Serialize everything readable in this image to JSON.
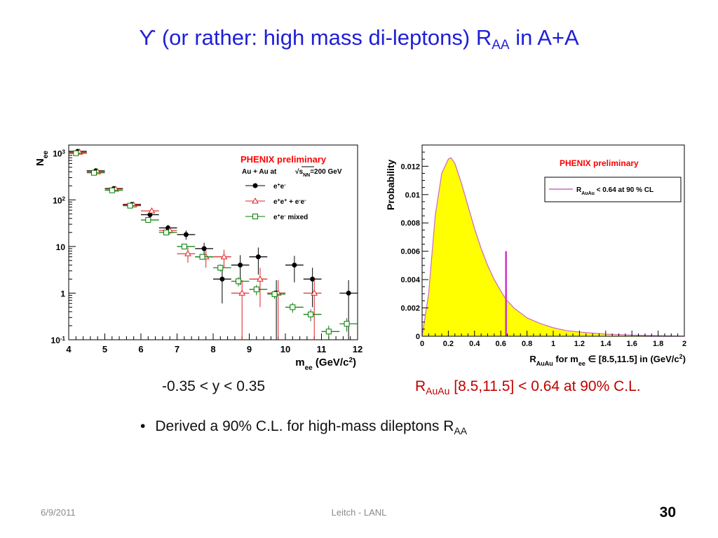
{
  "slide": {
    "title_prefix": "ϒ",
    "title_main": " (or rather: high mass di-leptons) R",
    "title_sub": "AA",
    "title_suffix": " in A+A",
    "rapidity_cut": "-0.35 < y < 0.35",
    "limit_prefix": "R",
    "limit_sub": "AuAu",
    "limit_suffix": " [8.5,11.5] < 0.64 at 90% C.L.",
    "bullet_prefix": "Derived a 90% C.L. for high-mass dileptons R",
    "bullet_sub": "AA",
    "footer_date": "6/9/2011",
    "footer_center": "Leitch - LANL",
    "page_number": "30"
  },
  "colors": {
    "title": "#1f1fd8",
    "limit_text": "#c00000",
    "phenix_label": "#ff0000",
    "series_black": "#000000",
    "series_red": "#e02020",
    "series_green": "#007a00",
    "histogram_fill": "#ffff00",
    "histogram_line": "#cc66cc",
    "limit_line": "#cc33cc"
  },
  "chart_data": [
    {
      "type": "scatter",
      "log_y": true,
      "xlim": [
        4,
        12
      ],
      "ylim": [
        0.1,
        1500
      ],
      "xticks": [
        "4",
        "5",
        "6",
        "7",
        "8",
        "9",
        "10",
        "11",
        "12"
      ],
      "yticks": [
        {
          "v": 0.1,
          "base": "10",
          "exp": "-1"
        },
        {
          "v": 1,
          "base": "1",
          "exp": ""
        },
        {
          "v": 10,
          "base": "10",
          "exp": ""
        },
        {
          "v": 100,
          "base": "10",
          "exp": "2"
        },
        {
          "v": 1000,
          "base": "10",
          "exp": "3"
        }
      ],
      "xlabel_main": "m",
      "xlabel_sub": "ee",
      "xlabel_rest": " (GeV/c",
      "xlabel_sup": "2",
      "xlabel_end": ")",
      "ylabel_main": "N",
      "ylabel_sub": "ee",
      "annotation": "PHENIX preliminary",
      "subtitle_prefix": "Au + Au  at ",
      "subtitle_sqrt": "s",
      "subtitle_sqrt_sub": "NN",
      "subtitle_suffix": "=200 GeV",
      "grid": false,
      "legend_position": "top-right",
      "series": [
        {
          "name": "e+e-",
          "name_parts": [
            [
              "e",
              ""
            ],
            [
              "+",
              "sup"
            ],
            [
              "e",
              ""
            ],
            [
              "-",
              "sup"
            ]
          ],
          "marker": "filled-circle",
          "x": [
            4.25,
            4.75,
            5.25,
            5.75,
            6.25,
            6.75,
            7.25,
            7.75,
            8.25,
            8.75,
            9.25,
            9.75,
            10.25,
            10.75,
            11.25,
            11.75
          ],
          "y": [
            1100,
            420,
            175,
            80,
            48,
            25,
            18,
            9,
            2,
            4,
            6,
            1,
            4,
            2,
            0,
            1
          ],
          "yerr": [
            60,
            25,
            12,
            7,
            6,
            4,
            4,
            3,
            1.4,
            2.5,
            3.5,
            0.9,
            2.3,
            1.5,
            0,
            0.9
          ]
        },
        {
          "name": "e+e+ + e-e-",
          "name_parts": [
            [
              "e",
              ""
            ],
            [
              "+",
              "sup"
            ],
            [
              "e",
              ""
            ],
            [
              "+",
              "sup"
            ],
            [
              " + e",
              ""
            ],
            [
              "-",
              "sup"
            ],
            [
              "e",
              ""
            ],
            [
              "-",
              "sup"
            ]
          ],
          "marker": "open-triangle",
          "x": [
            4.25,
            4.75,
            5.25,
            5.75,
            6.25,
            6.75,
            7.25,
            7.75,
            8.25,
            8.75,
            9.25,
            9.75,
            10.25,
            10.75,
            11.25,
            11.75
          ],
          "y": [
            1050,
            400,
            170,
            78,
            58,
            22,
            7,
            6,
            6,
            1,
            2,
            1,
            0,
            1,
            0,
            0
          ],
          "yerr": [
            55,
            22,
            11,
            7,
            7,
            4,
            2.5,
            2.5,
            2.5,
            0.9,
            1.5,
            0.9,
            0,
            0.9,
            0,
            0
          ]
        },
        {
          "name": "e+e- mixed",
          "name_parts": [
            [
              "e",
              ""
            ],
            [
              "+",
              "sup"
            ],
            [
              "e",
              ""
            ],
            [
              "-",
              "sup"
            ],
            [
              " mixed",
              ""
            ]
          ],
          "marker": "open-square",
          "x": [
            4.25,
            4.75,
            5.25,
            5.75,
            6.25,
            6.75,
            7.25,
            7.75,
            8.25,
            8.75,
            9.25,
            9.75,
            10.25,
            10.75,
            11.25,
            11.75
          ],
          "y": [
            1000,
            380,
            160,
            75,
            37,
            20,
            10,
            6,
            3.5,
            1.8,
            1.2,
            0.95,
            0.5,
            0.35,
            0.15,
            0.22
          ],
          "yerr": [
            30,
            15,
            8,
            4,
            3,
            2,
            1.2,
            0.8,
            0.6,
            0.4,
            0.3,
            0.2,
            0.12,
            0.1,
            0.05,
            0.07
          ]
        }
      ]
    },
    {
      "type": "area",
      "xlim": [
        0,
        2
      ],
      "ylim": [
        0,
        0.0135
      ],
      "xticks": [
        "0",
        "0.2",
        "0.4",
        "0.6",
        "0.8",
        "1",
        "1.2",
        "1.4",
        "1.6",
        "1.8",
        "2"
      ],
      "yticks": [
        "0",
        "0.002",
        "0.004",
        "0.006",
        "0.008",
        "0.01",
        "0.012"
      ],
      "xlabel_main": "R",
      "xlabel_sub": "AuAu",
      "xlabel_mid": "  for m",
      "xlabel_sub2": "ee",
      "xlabel_in": " ∈ [8.5,11.5] in (GeV/c",
      "xlabel_sup": "2",
      "xlabel_end": ")",
      "ylabel": "Probability",
      "annotation": "PHENIX preliminary",
      "legend_main": "R",
      "legend_sub": "AuAu",
      "legend_rest": " < 0.64 at 90 % CL",
      "legend_position": "top-right",
      "grid": false,
      "x": [
        0,
        0.05,
        0.1,
        0.15,
        0.2,
        0.22,
        0.25,
        0.3,
        0.35,
        0.4,
        0.45,
        0.5,
        0.55,
        0.6,
        0.64,
        0.7,
        0.8,
        0.9,
        1.0,
        1.1,
        1.2,
        1.4,
        1.6,
        1.8,
        2.0
      ],
      "y": [
        0,
        0.003,
        0.0085,
        0.0115,
        0.0125,
        0.0126,
        0.0122,
        0.0108,
        0.0092,
        0.0076,
        0.0062,
        0.005,
        0.004,
        0.0032,
        0.0026,
        0.002,
        0.0013,
        0.0009,
        0.0006,
        0.0004,
        0.0003,
        0.00015,
        8e-05,
        4e-05,
        1e-05
      ],
      "limit_x": 0.64,
      "limit_y": 0.006
    }
  ]
}
